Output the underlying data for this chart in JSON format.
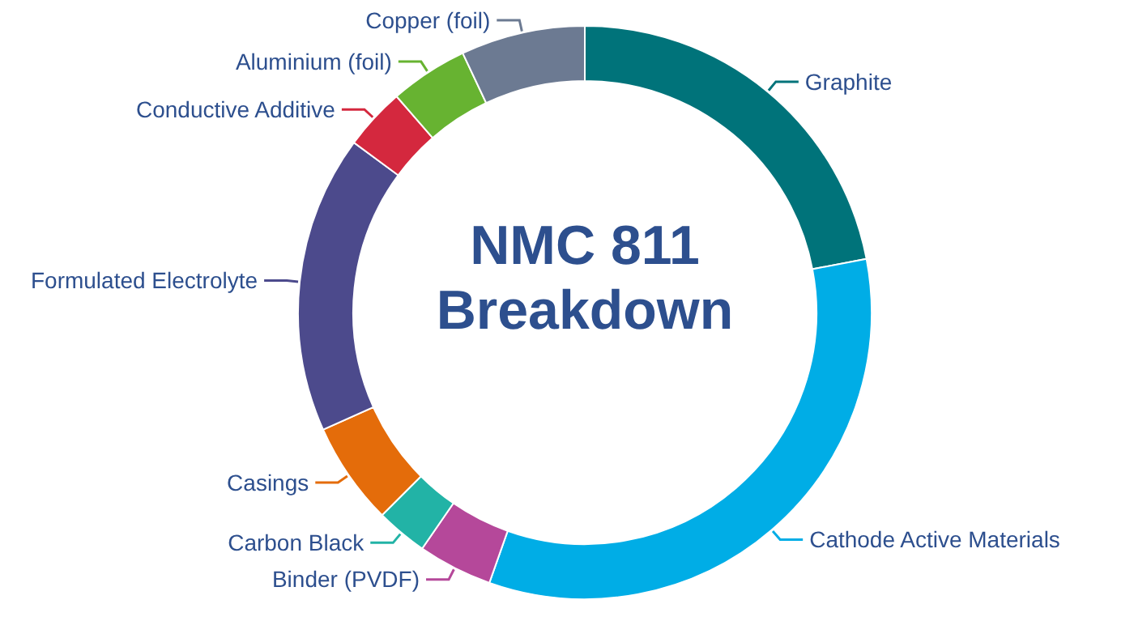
{
  "chart_data": {
    "type": "donut",
    "title": "NMC 811 Breakdown",
    "categories": [
      "Graphite",
      "Cathode Active Materials",
      "Binder (PVDF)",
      "Carbon Black",
      "Casings",
      "Formulated Electrolyte",
      "Conductive Additive",
      "Aluminium (foil)",
      "Copper (foil)"
    ],
    "values": [
      22,
      33.4,
      4.2,
      2.9,
      5.8,
      16.8,
      3.5,
      4.4,
      7
    ],
    "colors": [
      "#00737a",
      "#00ade6",
      "#b5489a",
      "#22b3a6",
      "#e46c0a",
      "#4c4a8c",
      "#d4283e",
      "#67b331",
      "#6c7a92"
    ]
  }
}
